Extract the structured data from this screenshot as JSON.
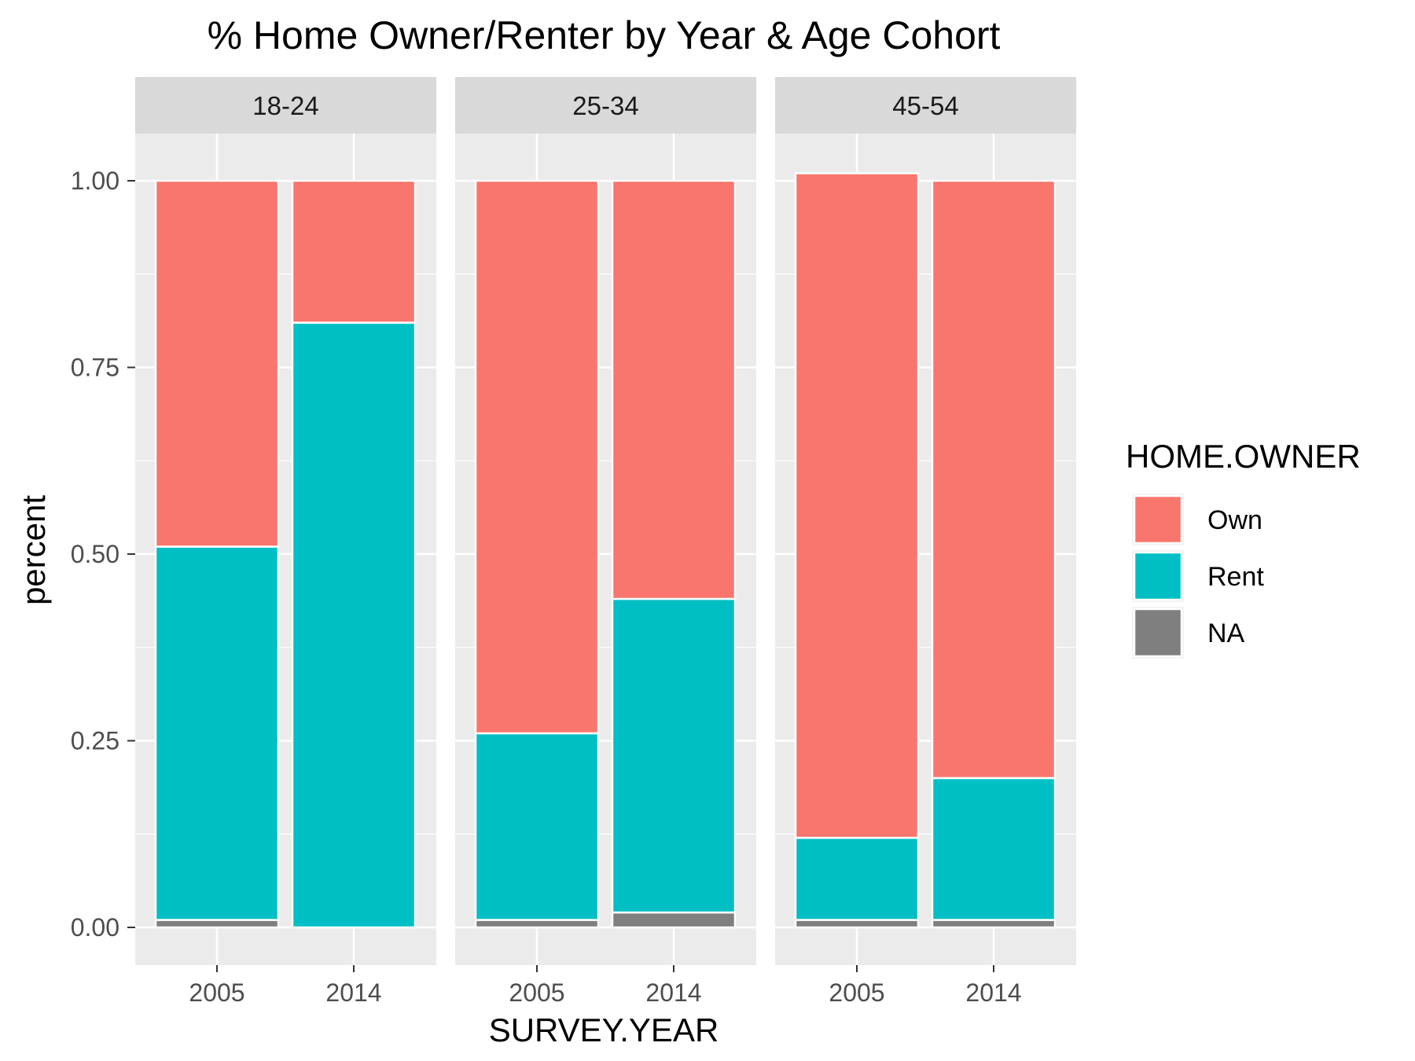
{
  "chart_data": {
    "type": "bar",
    "stacked": true,
    "title": "% Home Owner/Renter by Year & Age Cohort",
    "xlabel": "SURVEY.YEAR",
    "ylabel": "percent",
    "ylim": [
      -0.05,
      1.1
    ],
    "yticks": [
      "0.00",
      "0.25",
      "0.50",
      "0.75",
      "1.00"
    ],
    "ytick_values": [
      0,
      0.25,
      0.5,
      0.75,
      1.0
    ],
    "grid": true,
    "legend": {
      "title": "HOME.OWNER",
      "placement": "right",
      "entries": [
        {
          "name": "Own",
          "color": "#F8766D"
        },
        {
          "name": "Rent",
          "color": "#00BFC4"
        },
        {
          "name": "NA",
          "color": "#7F7F7F"
        }
      ]
    },
    "categories": [
      "2005",
      "2014"
    ],
    "facets": [
      {
        "label": "18-24",
        "bars": [
          {
            "category": "2005",
            "NA": 0.01,
            "Rent": 0.5,
            "Own": 0.49
          },
          {
            "category": "2014",
            "NA": 0.0,
            "Rent": 0.81,
            "Own": 0.19
          }
        ]
      },
      {
        "label": "25-34",
        "bars": [
          {
            "category": "2005",
            "NA": 0.01,
            "Rent": 0.25,
            "Own": 0.74
          },
          {
            "category": "2014",
            "NA": 0.02,
            "Rent": 0.42,
            "Own": 0.56
          }
        ]
      },
      {
        "label": "45-54",
        "bars": [
          {
            "category": "2005",
            "NA": 0.01,
            "Rent": 0.11,
            "Own": 0.89
          },
          {
            "category": "2014",
            "NA": 0.01,
            "Rent": 0.19,
            "Own": 0.8
          }
        ]
      }
    ],
    "colors": {
      "panel_bg": "#EBEBEB",
      "strip_bg": "#D9D9D9",
      "grid": "#FFFFFF"
    }
  }
}
